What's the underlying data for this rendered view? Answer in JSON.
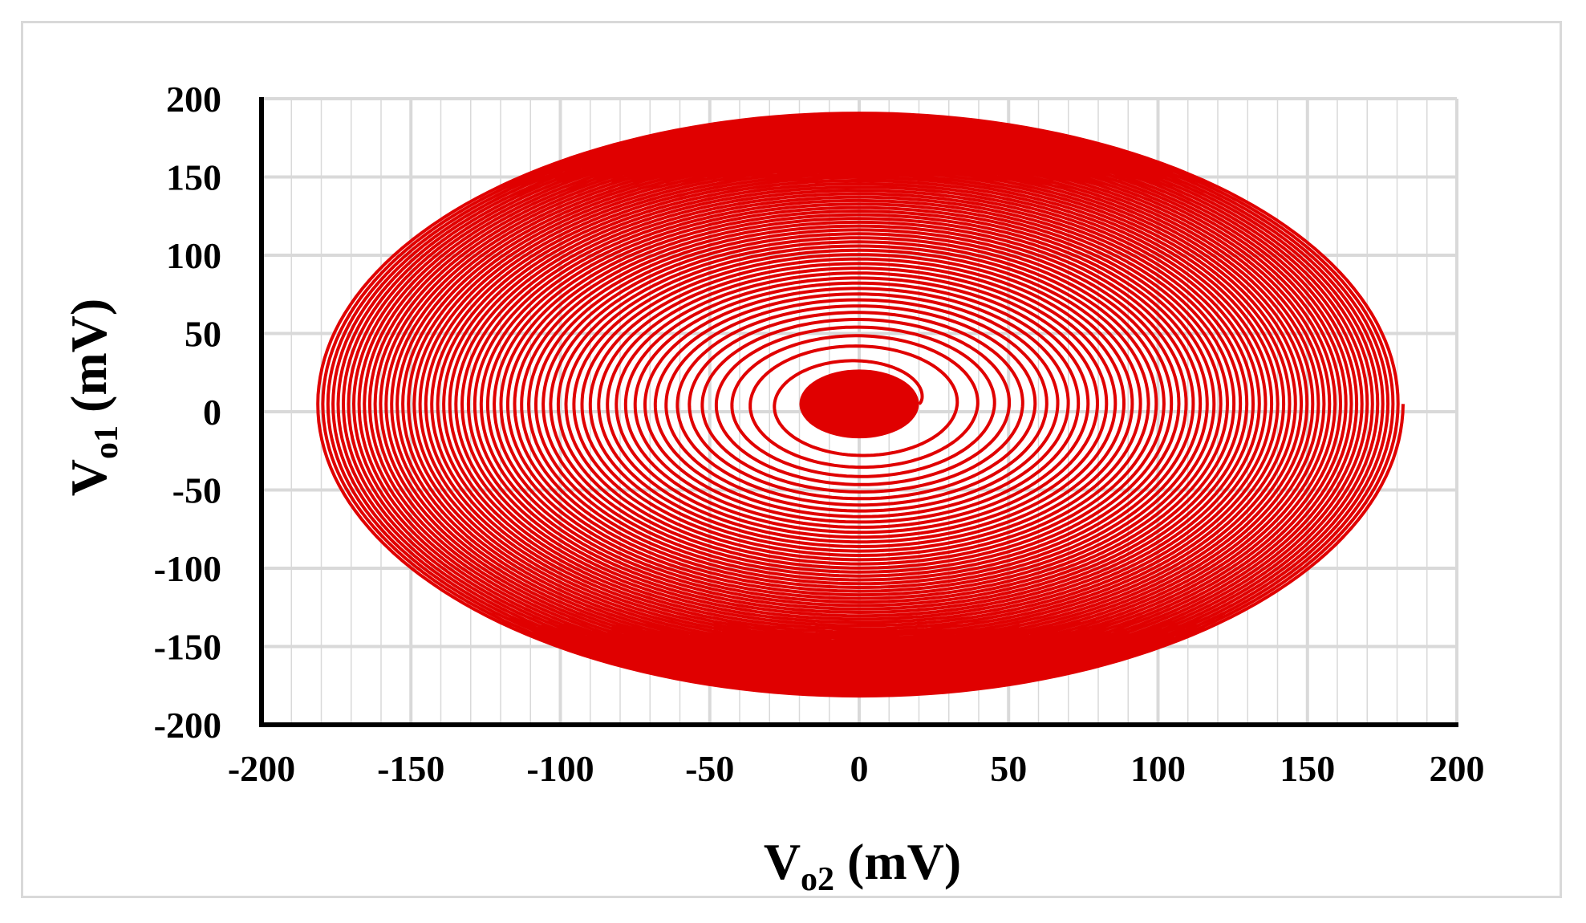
{
  "chart_data": {
    "type": "line",
    "title": "",
    "xlabel": {
      "main": "V",
      "sub": "o2",
      "unit": " (mV)"
    },
    "ylabel": {
      "main": "V",
      "sub": "o1",
      "unit": " (mV)"
    },
    "xlim": [
      -200,
      200
    ],
    "ylim": [
      -200,
      200
    ],
    "x_major_ticks": [
      -200,
      -150,
      -100,
      -50,
      0,
      50,
      100,
      150,
      200
    ],
    "y_major_ticks": [
      -200,
      -150,
      -100,
      -50,
      0,
      50,
      100,
      150,
      200
    ],
    "x_tick_labels": [
      "-200",
      "-150",
      "-100",
      "-50",
      "0",
      "50",
      "100",
      "150",
      "200"
    ],
    "y_tick_labels": [
      "200",
      "150",
      "100",
      "50",
      "0",
      "-50",
      "-100",
      "-150",
      "-200"
    ],
    "x_minor_step": 10,
    "grid": true,
    "legend": "none",
    "series": [
      {
        "color": "#e00000",
        "shape": "spiral",
        "center": [
          0,
          5
        ],
        "outer_rx": 182,
        "outer_ry": 187,
        "inner_rx": 20,
        "inner_ry": 22,
        "turns": 60
      }
    ]
  },
  "colors": {
    "line": "#e00000",
    "grid": "#d9d9d9",
    "axis": "#000000",
    "frame": "#d9d9d9"
  }
}
